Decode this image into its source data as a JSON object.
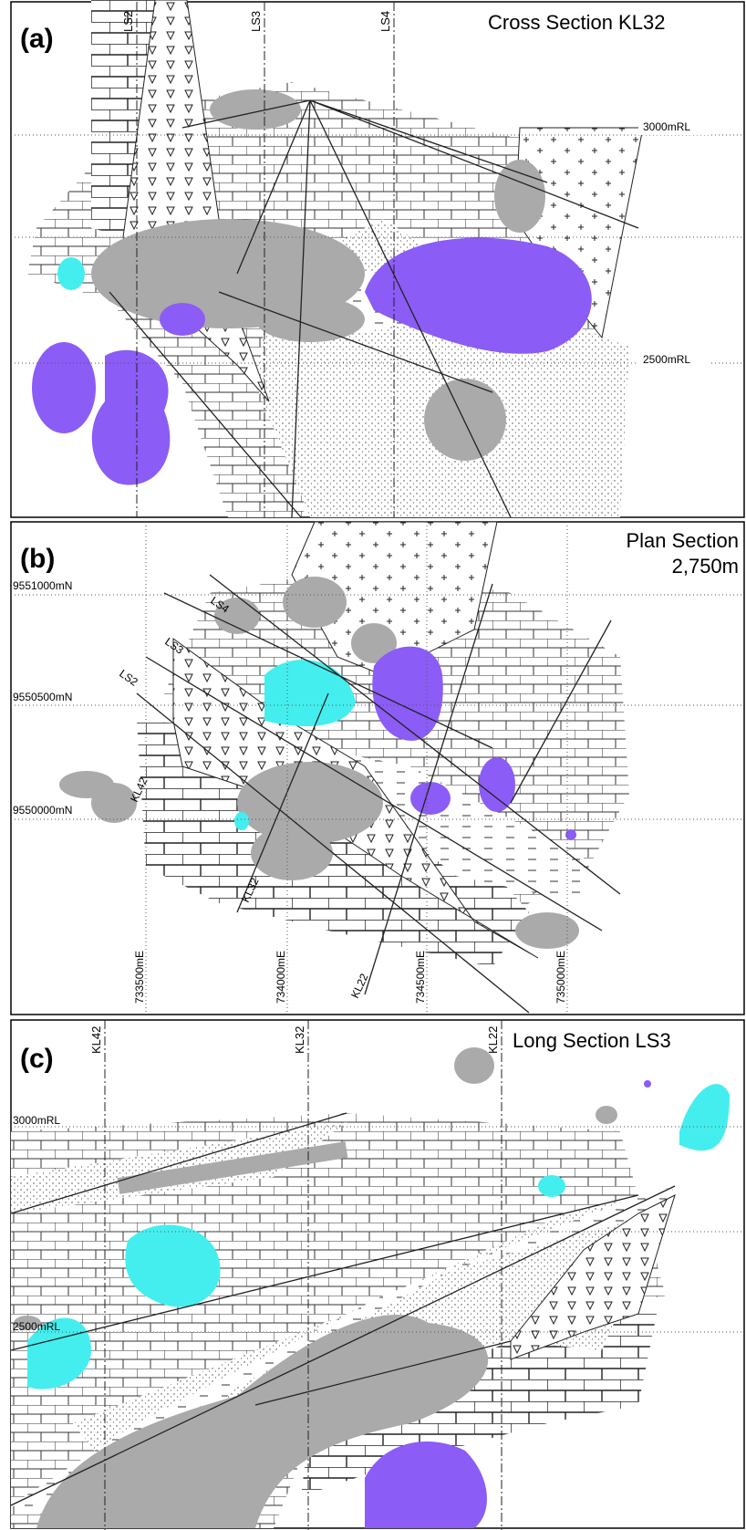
{
  "panels": [
    {
      "label": "(a)",
      "title": "Cross Section KL32",
      "section_lines": [
        "LS2",
        "LS3",
        "LS4"
      ],
      "levels": [
        "3000mRL",
        "2500mRL"
      ]
    },
    {
      "label": "(b)",
      "title": "Plan Section",
      "subtitle": "2,750m",
      "northings": [
        "9551000mN",
        "9550500mN",
        "9550000mN"
      ],
      "section_lines": [
        "LS4",
        "LS3",
        "LS2"
      ],
      "cross_lines": [
        "KL42",
        "KL32",
        "KL22"
      ],
      "eastings": [
        "733500mE",
        "734000mE",
        "734500mE",
        "735000mE"
      ]
    },
    {
      "label": "(c)",
      "title": "Long Section LS3",
      "cross_lines": [
        "KL42",
        "KL32",
        "KL22"
      ],
      "levels": [
        "3000mRL",
        "2500mRL"
      ]
    }
  ]
}
